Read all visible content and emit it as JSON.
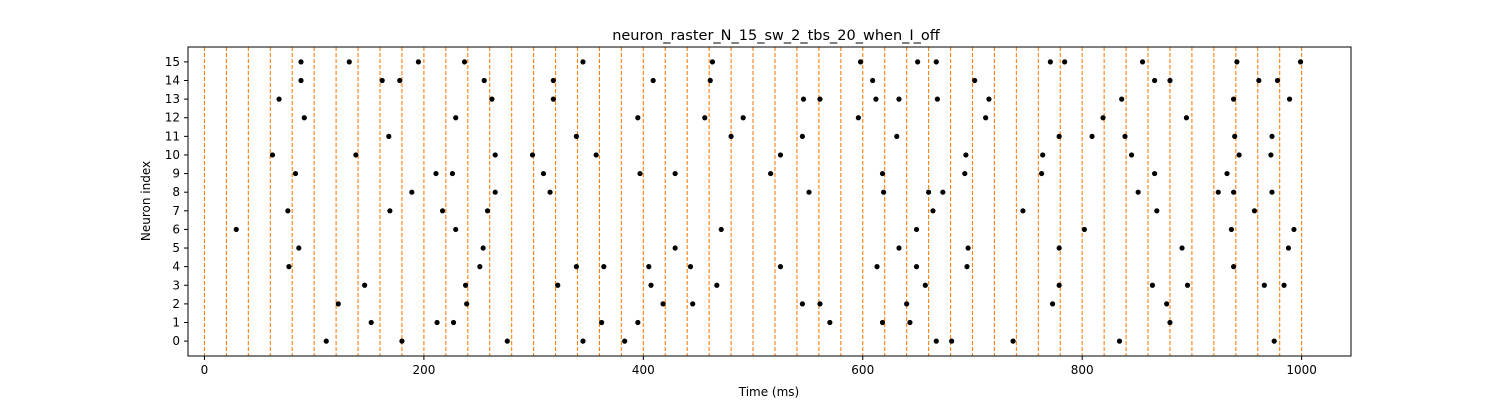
{
  "chart_data": {
    "type": "scatter",
    "title": "neuron_raster_N_15_sw_2_tbs_20_when_I_off",
    "xlabel": "Time (ms)",
    "ylabel": "Neuron index",
    "xlim": [
      -15,
      1045
    ],
    "ylim": [
      -0.8,
      15.8
    ],
    "x_ticks": [
      0,
      200,
      400,
      600,
      800,
      1000
    ],
    "y_ticks": [
      0,
      1,
      2,
      3,
      4,
      5,
      6,
      7,
      8,
      9,
      10,
      11,
      12,
      13,
      14,
      15
    ],
    "grid": false,
    "legend": "none",
    "vlines": {
      "start": 0,
      "end": 1000,
      "step": 20,
      "color": "#ff7f0e",
      "style": "dashed"
    },
    "marker_color": "#000000",
    "spikes": [
      {
        "neuron": 0,
        "times": [
          111,
          180,
          276,
          345,
          383,
          667,
          681,
          737,
          834,
          975
        ]
      },
      {
        "neuron": 1,
        "times": [
          152,
          212,
          227,
          362,
          395,
          618,
          643,
          570,
          880
        ]
      },
      {
        "neuron": 2,
        "times": [
          122,
          239,
          418,
          445,
          545,
          561,
          640,
          773,
          877
        ]
      },
      {
        "neuron": 3,
        "times": [
          146,
          238,
          322,
          407,
          467,
          657,
          779,
          864,
          896,
          966,
          984
        ]
      },
      {
        "neuron": 4,
        "times": [
          77,
          251,
          339,
          364,
          405,
          443,
          525,
          613,
          649,
          695,
          938
        ]
      },
      {
        "neuron": 5,
        "times": [
          86,
          254,
          429,
          633,
          696,
          779,
          891,
          988
        ]
      },
      {
        "neuron": 6,
        "times": [
          29,
          229,
          471,
          649,
          802,
          936,
          993
        ]
      },
      {
        "neuron": 7,
        "times": [
          76,
          169,
          217,
          258,
          664,
          746,
          868,
          957
        ]
      },
      {
        "neuron": 8,
        "times": [
          189,
          265,
          315,
          551,
          619,
          660,
          673,
          851,
          924,
          938,
          973
        ]
      },
      {
        "neuron": 9,
        "times": [
          83,
          211,
          226,
          309,
          397,
          429,
          516,
          618,
          693,
          763,
          866,
          932
        ]
      },
      {
        "neuron": 10,
        "times": [
          62,
          138,
          265,
          299,
          357,
          525,
          694,
          764,
          845,
          943,
          972
        ]
      },
      {
        "neuron": 11,
        "times": [
          168,
          339,
          480,
          545,
          631,
          779,
          809,
          839,
          939,
          973
        ]
      },
      {
        "neuron": 12,
        "times": [
          91,
          229,
          395,
          456,
          491,
          596,
          712,
          819,
          895
        ]
      },
      {
        "neuron": 13,
        "times": [
          68,
          262,
          318,
          546,
          561,
          612,
          633,
          668,
          715,
          836,
          938,
          989
        ]
      },
      {
        "neuron": 14,
        "times": [
          88,
          162,
          178,
          255,
          318,
          409,
          461,
          702,
          609,
          866,
          880,
          961,
          978
        ]
      },
      {
        "neuron": 15,
        "times": [
          88,
          132,
          195,
          237,
          345,
          463,
          598,
          650,
          667,
          771,
          784,
          855,
          941,
          999
        ]
      }
    ]
  }
}
